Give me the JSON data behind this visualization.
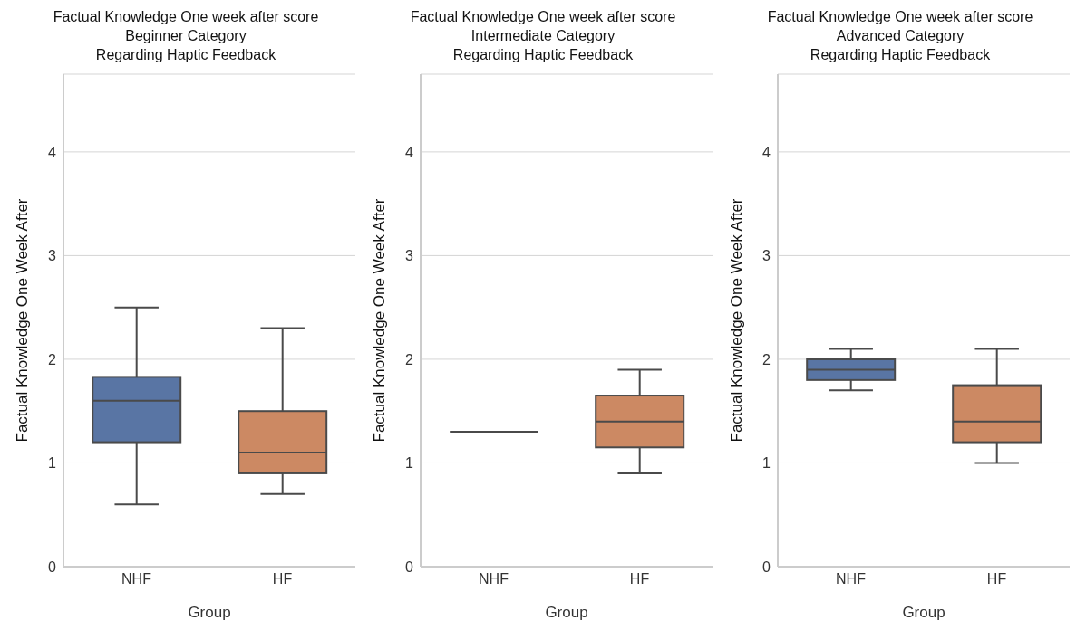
{
  "chart_data": [
    {
      "type": "box",
      "title": "Factual Knowledge One week after score\nBeginner Category\nRegarding Haptic Feedback",
      "xlabel": "Group",
      "ylabel": "Factual Knowledge One Week After",
      "categories": [
        "NHF",
        "HF"
      ],
      "colors": [
        "#5975a4",
        "#cc8963"
      ],
      "ylim": [
        0,
        4.75
      ],
      "yticks": [
        0,
        1,
        2,
        3,
        4
      ],
      "grid": "y",
      "boxes": [
        {
          "low": 0.6,
          "q1": 1.2,
          "median": 1.6,
          "q3": 1.83,
          "high": 2.5
        },
        {
          "low": 0.7,
          "q1": 0.9,
          "median": 1.1,
          "q3": 1.5,
          "high": 2.3
        }
      ]
    },
    {
      "type": "box",
      "title": "Factual Knowledge One week after score\nIntermediate Category\nRegarding Haptic Feedback",
      "xlabel": "Group",
      "ylabel": "Factual Knowledge One Week After",
      "categories": [
        "NHF",
        "HF"
      ],
      "colors": [
        "#4a4a4a",
        "#cc8963"
      ],
      "ylim": [
        0,
        4.75
      ],
      "yticks": [
        0,
        1,
        2,
        3,
        4
      ],
      "grid": "y",
      "boxes": [
        {
          "low": 1.3,
          "q1": 1.3,
          "median": 1.3,
          "q3": 1.3,
          "high": 1.3
        },
        {
          "low": 0.9,
          "q1": 1.15,
          "median": 1.4,
          "q3": 1.65,
          "high": 1.9
        }
      ]
    },
    {
      "type": "box",
      "title": "Factual Knowledge One week after score\nAdvanced Category\nRegarding Haptic Feedback",
      "xlabel": "Group",
      "ylabel": "Factual Knowledge One Week After",
      "categories": [
        "NHF",
        "HF"
      ],
      "colors": [
        "#5975a4",
        "#cc8963"
      ],
      "ylim": [
        0,
        4.75
      ],
      "yticks": [
        0,
        1,
        2,
        3,
        4
      ],
      "grid": "y",
      "boxes": [
        {
          "low": 1.7,
          "q1": 1.8,
          "median": 1.9,
          "q3": 2.0,
          "high": 2.1
        },
        {
          "low": 1.0,
          "q1": 1.2,
          "median": 1.4,
          "q3": 1.75,
          "high": 2.1
        }
      ]
    }
  ]
}
